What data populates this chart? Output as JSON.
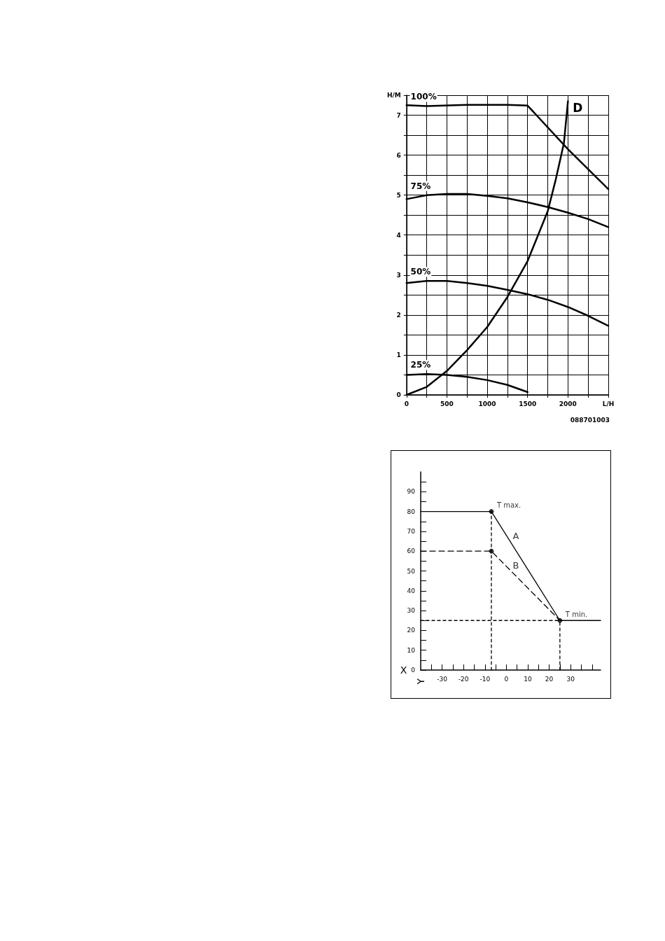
{
  "chart_data": [
    {
      "type": "line",
      "xlim": [
        0,
        2500
      ],
      "ylim": [
        0,
        7.5
      ],
      "xticks": [
        0,
        {
          "value": 250,
          "label": null
        },
        500,
        {
          "value": 750,
          "label": null
        },
        1000,
        {
          "value": 1250,
          "label": null
        },
        1500,
        {
          "value": 1750,
          "label": null
        },
        2000,
        {
          "value": 2250,
          "label": null
        },
        {
          "value": 2500,
          "label": "L/H"
        }
      ],
      "yticks": [
        0,
        {
          "value": 0.5,
          "label": null
        },
        1,
        {
          "value": 1.5,
          "label": null
        },
        2,
        {
          "value": 2.5,
          "label": null
        },
        3,
        {
          "value": 3.5,
          "label": null
        },
        4,
        {
          "value": 4.5,
          "label": null
        },
        5,
        {
          "value": 5.5,
          "label": null
        },
        6,
        {
          "value": 6.5,
          "label": null
        },
        7,
        {
          "value": 7.5,
          "label": "H/M"
        }
      ],
      "grid": true,
      "legend": false,
      "marker": "none",
      "line_style": "solid",
      "series": [
        {
          "name": "100%",
          "color": "#000000",
          "x": [
            0,
            250,
            750,
            1250,
            1500,
            2000,
            2500
          ],
          "values": [
            7.25,
            7.23,
            7.26,
            7.26,
            7.24,
            6.15,
            5.15
          ]
        },
        {
          "name": "75%",
          "color": "#000000",
          "x": [
            0,
            250,
            500,
            750,
            1000,
            1250,
            1500,
            1750,
            2000,
            2250,
            2500
          ],
          "values": [
            4.9,
            5.0,
            5.03,
            5.03,
            4.98,
            4.92,
            4.82,
            4.7,
            4.56,
            4.4,
            4.2
          ]
        },
        {
          "name": "50%",
          "color": "#000000",
          "x": [
            0,
            250,
            500,
            750,
            1000,
            1250,
            1500,
            1750,
            2000,
            2250,
            2500
          ],
          "values": [
            2.8,
            2.85,
            2.85,
            2.8,
            2.73,
            2.63,
            2.52,
            2.38,
            2.2,
            1.98,
            1.73
          ]
        },
        {
          "name": "25%",
          "color": "#000000",
          "x": [
            0,
            250,
            500,
            750,
            1000,
            1250,
            1500
          ],
          "values": [
            0.5,
            0.52,
            0.5,
            0.45,
            0.37,
            0.25,
            0.07
          ]
        },
        {
          "name": "D",
          "color": "#000000",
          "x": [
            0,
            250,
            500,
            750,
            1000,
            1250,
            1500,
            1750,
            1850,
            1950,
            2000
          ],
          "values": [
            0,
            0.2,
            0.6,
            1.12,
            1.7,
            2.45,
            3.35,
            4.6,
            5.4,
            6.3,
            7.35
          ]
        }
      ],
      "annotations": [
        "088701003"
      ]
    },
    {
      "type": "line",
      "xlabel": "X",
      "ylabel": "Y",
      "xlim": [
        -40,
        44
      ],
      "ylim": [
        0,
        100
      ],
      "xticks": [
        {
          "value": -35,
          "label": null
        },
        -30,
        {
          "value": -25,
          "label": null
        },
        -20,
        {
          "value": -15,
          "label": null
        },
        -10,
        {
          "value": -5,
          "label": null
        },
        0,
        {
          "value": 5,
          "label": null
        },
        10,
        {
          "value": 15,
          "label": null
        },
        20,
        {
          "value": 25,
          "label": null
        },
        30,
        {
          "value": 35,
          "label": null
        },
        {
          "value": 40,
          "label": null
        }
      ],
      "yticks": [
        0,
        {
          "value": 5,
          "label": null
        },
        10,
        {
          "value": 15,
          "label": null
        },
        20,
        {
          "value": 25,
          "label": null
        },
        30,
        {
          "value": 35,
          "label": null
        },
        40,
        {
          "value": 45,
          "label": null
        },
        50,
        {
          "value": 55,
          "label": null
        },
        60,
        {
          "value": 65,
          "label": null
        },
        70,
        {
          "value": 75,
          "label": null
        },
        80,
        {
          "value": 85,
          "label": null
        },
        90,
        {
          "value": 95,
          "label": null
        }
      ],
      "grid": false,
      "legend": false,
      "marker": "none",
      "series": [
        {
          "name": "A",
          "color": "#000000",
          "line_style": "solid",
          "x": [
            -40,
            -7,
            25,
            44
          ],
          "values": [
            80,
            80,
            25,
            25
          ]
        },
        {
          "name": "B",
          "color": "#000000",
          "line_style": "dashed",
          "x": [
            -40,
            -7,
            25
          ],
          "values": [
            60,
            60,
            25
          ]
        },
        {
          "color": "#000000",
          "line_style": "dotted",
          "x": [
            -7,
            -7
          ],
          "values": [
            0,
            80
          ]
        },
        {
          "color": "#000000",
          "line_style": "dotted",
          "x": [
            -40,
            25
          ],
          "values": [
            25,
            25
          ]
        },
        {
          "color": "#000000",
          "line_style": "dotted",
          "x": [
            25,
            25
          ],
          "values": [
            0,
            25
          ]
        },
        {
          "type": "scatter",
          "color": "#000000",
          "marker": "circle",
          "x": [
            -7,
            -7,
            25
          ],
          "values": [
            80,
            60,
            25
          ]
        }
      ],
      "annotations": [
        {
          "text": "T max.",
          "x": -7,
          "y": 80
        },
        {
          "text": "T min.",
          "x": 25,
          "y": 25
        }
      ]
    }
  ]
}
